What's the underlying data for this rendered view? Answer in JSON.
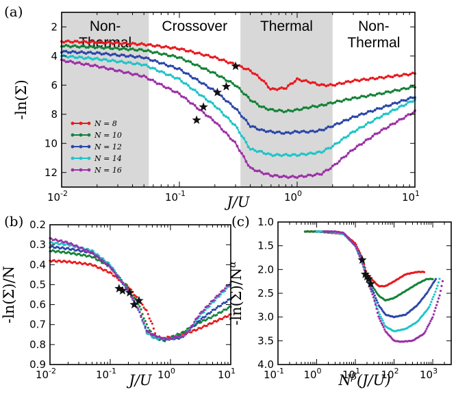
{
  "panels": {
    "a": {
      "label": "(a)"
    },
    "b": {
      "label": "(b)"
    },
    "c": {
      "label": "(c)"
    }
  },
  "colors": {
    "N8": "#e8191e",
    "N10": "#138237",
    "N12": "#2a46a8",
    "N14": "#1ec4c8",
    "N16": "#9c30a6",
    "shade": "#d8d8d8"
  },
  "chart_data": [
    {
      "id": "a",
      "type": "line",
      "xscale": "log",
      "xlim": [
        0.01,
        10
      ],
      "ylim": [
        13,
        1
      ],
      "yinverted": true,
      "xlabel": "J/U",
      "ylabel": "-ln(Σ)",
      "xticks": [
        {
          "v": 0.01,
          "b": "10",
          "e": "-2"
        },
        {
          "v": 0.1,
          "b": "10",
          "e": "-1"
        },
        {
          "v": 1,
          "b": "10",
          "e": "0"
        },
        {
          "v": 10,
          "b": "10",
          "e": "1"
        }
      ],
      "yticks": [
        2,
        4,
        6,
        8,
        10,
        12
      ],
      "regions": [
        {
          "from": 0.01,
          "to": 0.055,
          "shaded": true,
          "lines": [
            "Non-",
            "Thermal"
          ]
        },
        {
          "from": 0.055,
          "to": 0.33,
          "shaded": false,
          "lines": [
            "Crossover"
          ]
        },
        {
          "from": 0.33,
          "to": 2.0,
          "shaded": true,
          "lines": [
            "Thermal"
          ]
        },
        {
          "from": 2.0,
          "to": 10,
          "shaded": false,
          "lines": [
            "Non-",
            "Thermal"
          ]
        }
      ],
      "legend": {
        "position": "lower-left",
        "entries": [
          "N = 8",
          "N = 10",
          "N = 12",
          "N = 14",
          "N = 16"
        ]
      },
      "series": [
        {
          "name": "N = 8",
          "color": "N8",
          "x": [
            0.01,
            0.02,
            0.05,
            0.1,
            0.2,
            0.3,
            0.4,
            0.5,
            0.6,
            0.8,
            1.0,
            1.3,
            1.6,
            2.0,
            3.0,
            5.0,
            10.0
          ],
          "y": [
            3.0,
            3.05,
            3.2,
            3.5,
            4.1,
            4.6,
            5.0,
            5.6,
            6.3,
            6.2,
            5.6,
            5.8,
            6.0,
            6.0,
            5.7,
            5.5,
            5.2
          ]
        },
        {
          "name": "N = 10",
          "color": "N10",
          "x": [
            0.01,
            0.02,
            0.05,
            0.1,
            0.2,
            0.3,
            0.4,
            0.5,
            0.6,
            0.8,
            1.0,
            1.3,
            1.6,
            2.0,
            3.0,
            5.0,
            10.0
          ],
          "y": [
            3.3,
            3.4,
            3.6,
            4.1,
            5.2,
            6.0,
            7.0,
            7.5,
            7.7,
            7.8,
            7.7,
            7.5,
            7.4,
            7.2,
            6.9,
            6.6,
            6.1
          ]
        },
        {
          "name": "N = 12",
          "color": "N12",
          "x": [
            0.01,
            0.02,
            0.05,
            0.1,
            0.2,
            0.3,
            0.4,
            0.5,
            0.6,
            0.8,
            1.0,
            1.3,
            1.6,
            2.0,
            3.0,
            5.0,
            10.0
          ],
          "y": [
            3.7,
            3.8,
            4.1,
            4.9,
            6.4,
            7.6,
            8.8,
            9.1,
            9.2,
            9.3,
            9.2,
            9.2,
            9.1,
            8.8,
            8.2,
            7.6,
            6.8
          ]
        },
        {
          "name": "N = 14",
          "color": "N14",
          "x": [
            0.01,
            0.02,
            0.05,
            0.1,
            0.2,
            0.3,
            0.4,
            0.5,
            0.6,
            0.8,
            1.0,
            1.3,
            1.6,
            2.0,
            3.0,
            5.0,
            10.0
          ],
          "y": [
            4.0,
            4.2,
            4.6,
            5.6,
            7.4,
            8.8,
            10.4,
            10.6,
            10.8,
            10.8,
            10.8,
            10.7,
            10.6,
            10.2,
            9.2,
            8.2,
            7.0
          ]
        },
        {
          "name": "N = 16",
          "color": "N16",
          "x": [
            0.01,
            0.02,
            0.05,
            0.1,
            0.2,
            0.3,
            0.4,
            0.5,
            0.6,
            0.8,
            1.0,
            1.3,
            1.6,
            2.0,
            3.0,
            5.0,
            10.0
          ],
          "y": [
            4.3,
            4.7,
            5.4,
            6.6,
            8.5,
            10.0,
            11.7,
            12.0,
            12.2,
            12.3,
            12.3,
            12.2,
            12.1,
            11.6,
            10.4,
            9.2,
            7.8
          ]
        }
      ],
      "stars": {
        "x": [
          0.14,
          0.16,
          0.21,
          0.25,
          0.3
        ],
        "y": [
          8.4,
          7.5,
          6.5,
          6.1,
          4.7
        ]
      }
    },
    {
      "id": "b",
      "type": "scatter",
      "xscale": "log",
      "xlim": [
        0.01,
        10
      ],
      "ylim": [
        0.9,
        0.2
      ],
      "yinverted": true,
      "xlabel": "J/U",
      "ylabel": "-ln(Σ)/N",
      "xticks": [
        {
          "v": 0.01,
          "b": "10",
          "e": "-2"
        },
        {
          "v": 0.1,
          "b": "10",
          "e": "-1"
        },
        {
          "v": 1,
          "b": "10",
          "e": "0"
        },
        {
          "v": 10,
          "b": "10",
          "e": "1"
        }
      ],
      "yticks": [
        0.2,
        0.3,
        0.4,
        0.5,
        0.6,
        0.7,
        0.8,
        0.9
      ],
      "series": [
        {
          "name": "N = 8",
          "color": "N8",
          "x": [
            0.01,
            0.02,
            0.05,
            0.1,
            0.2,
            0.3,
            0.4,
            0.5,
            0.6,
            0.8,
            1.0,
            1.3,
            1.6,
            2.0,
            3.0,
            5.0,
            10.0
          ],
          "y": [
            0.38,
            0.385,
            0.4,
            0.44,
            0.51,
            0.58,
            0.63,
            0.7,
            0.77,
            0.77,
            0.76,
            0.76,
            0.75,
            0.74,
            0.72,
            0.69,
            0.65
          ]
        },
        {
          "name": "N = 10",
          "color": "N10",
          "x": [
            0.01,
            0.02,
            0.05,
            0.1,
            0.2,
            0.3,
            0.4,
            0.5,
            0.6,
            0.8,
            1.0,
            1.3,
            1.6,
            2.0,
            3.0,
            5.0,
            10.0
          ],
          "y": [
            0.33,
            0.34,
            0.36,
            0.41,
            0.52,
            0.6,
            0.7,
            0.75,
            0.77,
            0.78,
            0.77,
            0.75,
            0.74,
            0.72,
            0.69,
            0.66,
            0.61
          ]
        },
        {
          "name": "N = 12",
          "color": "N12",
          "x": [
            0.01,
            0.02,
            0.05,
            0.1,
            0.2,
            0.3,
            0.4,
            0.5,
            0.6,
            0.8,
            1.0,
            1.3,
            1.6,
            2.0,
            3.0,
            5.0,
            10.0
          ],
          "y": [
            0.31,
            0.32,
            0.34,
            0.41,
            0.53,
            0.63,
            0.73,
            0.76,
            0.77,
            0.775,
            0.77,
            0.77,
            0.76,
            0.73,
            0.68,
            0.63,
            0.57
          ]
        },
        {
          "name": "N = 14",
          "color": "N14",
          "x": [
            0.01,
            0.02,
            0.05,
            0.1,
            0.2,
            0.3,
            0.4,
            0.5,
            0.6,
            0.8,
            1.0,
            1.3,
            1.6,
            2.0,
            3.0,
            5.0,
            10.0
          ],
          "y": [
            0.29,
            0.3,
            0.33,
            0.4,
            0.53,
            0.63,
            0.74,
            0.76,
            0.77,
            0.77,
            0.77,
            0.76,
            0.76,
            0.73,
            0.66,
            0.59,
            0.5
          ]
        },
        {
          "name": "N = 16",
          "color": "N16",
          "x": [
            0.01,
            0.02,
            0.05,
            0.1,
            0.2,
            0.3,
            0.4,
            0.5,
            0.6,
            0.8,
            1.0,
            1.3,
            1.6,
            2.0,
            3.0,
            5.0,
            10.0
          ],
          "y": [
            0.27,
            0.29,
            0.34,
            0.41,
            0.53,
            0.63,
            0.73,
            0.75,
            0.76,
            0.77,
            0.77,
            0.76,
            0.76,
            0.73,
            0.65,
            0.58,
            0.49
          ]
        }
      ],
      "stars": {
        "x": [
          0.14,
          0.16,
          0.21,
          0.25,
          0.3
        ],
        "y": [
          0.52,
          0.53,
          0.54,
          0.6,
          0.58
        ]
      }
    },
    {
      "id": "c",
      "type": "scatter",
      "xscale": "log",
      "xlim": [
        0.1,
        3000
      ],
      "ylim": [
        4.0,
        1.0
      ],
      "yinverted": true,
      "xlabel": "N^β(J/U)",
      "ylabel": "-ln(Σ)/N^α",
      "xticks": [
        {
          "v": 0.1,
          "b": "10",
          "e": "-1"
        },
        {
          "v": 1,
          "b": "10",
          "e": "0"
        },
        {
          "v": 10,
          "b": "10",
          "e": "1"
        },
        {
          "v": 100,
          "b": "10",
          "e": "2"
        },
        {
          "v": 1000,
          "b": "10",
          "e": "3"
        }
      ],
      "yticks": [
        1.0,
        1.5,
        2.0,
        2.5,
        3.0,
        3.5,
        4.0
      ],
      "series": [
        {
          "name": "N = 8",
          "color": "N8",
          "x": [
            0.5,
            1,
            2,
            5,
            10,
            15,
            20,
            30,
            40,
            60,
            100,
            200,
            400,
            600
          ],
          "y": [
            1.2,
            1.2,
            1.22,
            1.25,
            1.45,
            1.75,
            2.1,
            2.25,
            2.35,
            2.35,
            2.25,
            2.1,
            2.05,
            2.05
          ]
        },
        {
          "name": "N = 10",
          "color": "N10",
          "x": [
            0.5,
            1,
            2,
            5,
            10,
            15,
            20,
            30,
            40,
            60,
            100,
            200,
            400,
            700,
            1000
          ],
          "y": [
            1.2,
            1.2,
            1.21,
            1.25,
            1.5,
            1.8,
            2.15,
            2.4,
            2.55,
            2.65,
            2.6,
            2.45,
            2.3,
            2.2,
            2.2
          ]
        },
        {
          "name": "N = 12",
          "color": "N12",
          "x": [
            1,
            2,
            5,
            10,
            15,
            20,
            30,
            40,
            60,
            100,
            200,
            400,
            700,
            1000,
            1200
          ],
          "y": [
            1.2,
            1.2,
            1.25,
            1.5,
            1.8,
            2.2,
            2.5,
            2.75,
            2.95,
            3.0,
            2.95,
            2.75,
            2.5,
            2.3,
            2.2
          ]
        },
        {
          "name": "N = 14",
          "color": "N14",
          "x": [
            1,
            2,
            5,
            10,
            15,
            20,
            30,
            40,
            60,
            100,
            200,
            400,
            800,
            1200,
            1500
          ],
          "y": [
            1.2,
            1.2,
            1.25,
            1.5,
            1.85,
            2.2,
            2.6,
            2.9,
            3.2,
            3.3,
            3.25,
            3.1,
            2.8,
            2.45,
            2.2
          ]
        },
        {
          "name": "N = 16",
          "color": "N16",
          "x": [
            1.5,
            3,
            5,
            10,
            15,
            20,
            30,
            40,
            60,
            100,
            150,
            300,
            600,
            1000,
            1500,
            1800
          ],
          "y": [
            1.2,
            1.2,
            1.23,
            1.5,
            1.85,
            2.2,
            2.6,
            3.0,
            3.3,
            3.5,
            3.52,
            3.5,
            3.35,
            3.0,
            2.55,
            2.25
          ]
        }
      ],
      "stars": {
        "x": [
          15,
          18,
          20,
          22,
          25
        ],
        "y": [
          1.8,
          2.1,
          2.15,
          2.2,
          2.3
        ]
      }
    }
  ]
}
